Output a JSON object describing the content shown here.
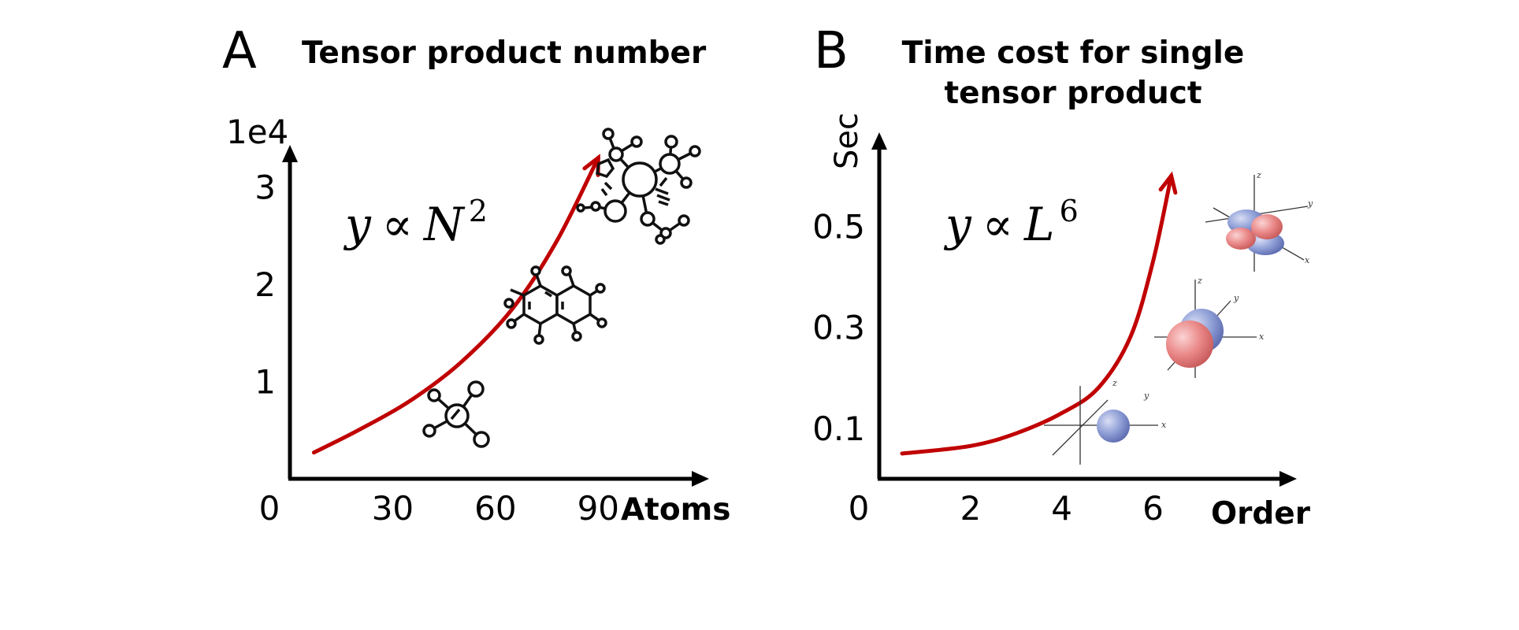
{
  "chart_data": [
    {
      "type": "line",
      "panel": "A",
      "title": "Tensor product number",
      "xlabel": "Atoms",
      "ylabel": "",
      "y_scale_label": "1e4",
      "x_ticks": [
        "0",
        "30",
        "60",
        "90"
      ],
      "y_ticks": [
        "1",
        "2",
        "3"
      ],
      "xlim": [
        0,
        115
      ],
      "ylim": [
        0,
        3.4
      ],
      "formula": {
        "lhs": "y",
        "rel": "∝",
        "base": "N",
        "exp": "2"
      },
      "series": [
        {
          "x": [
            7,
            20,
            35,
            50,
            65,
            78,
            90
          ],
          "y": [
            0.27,
            0.5,
            0.8,
            1.2,
            1.75,
            2.45,
            3.3
          ]
        }
      ],
      "colors": {
        "curve": "#c00000",
        "axis": "#000000"
      },
      "icons": [
        "small-molecule-icon",
        "naphthalene-molecule-icon",
        "large-molecule-icon"
      ]
    },
    {
      "type": "line",
      "panel": "B",
      "title": [
        "Time cost for single",
        "tensor product"
      ],
      "xlabel": "Order",
      "ylabel": "Sec",
      "x_ticks": [
        "0",
        "2",
        "4",
        "6"
      ],
      "y_ticks": [
        "0.1",
        "0.3",
        "0.5"
      ],
      "xlim": [
        0,
        8.6
      ],
      "ylim": [
        0,
        0.68
      ],
      "formula": {
        "lhs": "y",
        "rel": "∝",
        "base": "L",
        "exp": "6"
      },
      "series": [
        {
          "x": [
            0.5,
            2,
            3,
            4,
            4.8,
            5.5,
            6,
            6.4
          ],
          "y": [
            0.05,
            0.065,
            0.09,
            0.13,
            0.18,
            0.28,
            0.43,
            0.6
          ]
        }
      ],
      "colors": {
        "curve": "#c00000",
        "axis": "#000000",
        "orbital_blue": "#8f9fd6",
        "orbital_red": "#ea8888"
      },
      "icons": [
        "s-orbital-icon",
        "p-orbital-icon",
        "d-orbital-icon"
      ],
      "orbital_axis_labels": [
        "x",
        "y",
        "z"
      ]
    }
  ]
}
